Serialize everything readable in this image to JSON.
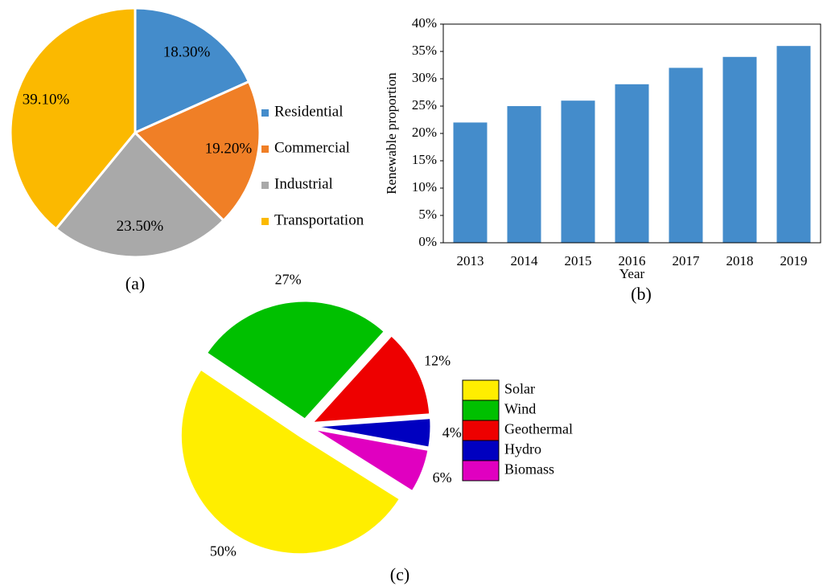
{
  "chart_data": [
    {
      "type": "pie",
      "caption": "(a)",
      "categories": [
        "Residential",
        "Commercial",
        "Industrial",
        "Transportation"
      ],
      "values": [
        18.3,
        19.2,
        23.5,
        39.1
      ],
      "value_labels": [
        "18.30%",
        "19.20%",
        "23.50%",
        "39.10%"
      ],
      "colors": [
        "#448ccb",
        "#f07f26",
        "#a9a9a9",
        "#fbb900"
      ],
      "labels_position": "inside",
      "legend": "right"
    },
    {
      "type": "bar",
      "caption": "(b)",
      "categories": [
        "2013",
        "2014",
        "2015",
        "2016",
        "2017",
        "2018",
        "2019"
      ],
      "values": [
        22,
        25,
        26,
        29,
        32,
        34,
        36
      ],
      "color": "#448ccb",
      "x_label": "Year",
      "y_label": "Renewable proportion",
      "ylim": [
        0,
        40
      ],
      "yticks": [
        {
          "value": 0,
          "label": "0%"
        },
        {
          "value": 5,
          "label": "5%"
        },
        {
          "value": 10,
          "label": "10%"
        },
        {
          "value": 15,
          "label": "15%"
        },
        {
          "value": 20,
          "label": "20%"
        },
        {
          "value": 25,
          "label": "25%"
        },
        {
          "value": 30,
          "label": "30%"
        },
        {
          "value": 35,
          "label": "35%"
        },
        {
          "value": 40,
          "label": "40%"
        }
      ],
      "grid": false
    },
    {
      "type": "pie",
      "caption": "(c)",
      "categories": [
        "Wind",
        "Geothermal",
        "Hydro",
        "Biomass",
        "Solar"
      ],
      "values": [
        27,
        12,
        4,
        6,
        50
      ],
      "value_labels": [
        "27%",
        "12%",
        "4%",
        "6%",
        "50%"
      ],
      "colors": [
        "#00c000",
        "#ee0000",
        "#0000c0",
        "#e000c0",
        "#ffee00"
      ],
      "legend_order": [
        "Solar",
        "Wind",
        "Geothermal",
        "Hydro",
        "Biomass"
      ],
      "labels_position": "outside",
      "legend": "right",
      "exploded": true
    }
  ]
}
